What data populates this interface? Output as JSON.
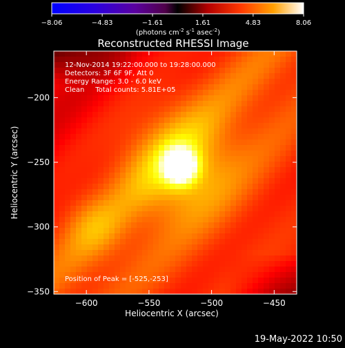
{
  "colorbar": {
    "ticks": [
      "-8.06",
      "-4.83",
      "-1.61",
      "1.61",
      "4.83",
      "8.06"
    ],
    "range": [
      -8.06,
      8.06
    ],
    "units_text": "(photons cm",
    "units_sup1": "-2",
    "units_mid": " s",
    "units_sup2": "-1",
    "units_end": " asec",
    "units_sup3": "-2",
    "units_close": ")"
  },
  "plot": {
    "title": "Reconstructed RHESSI Image",
    "info_lines": [
      "12-Nov-2014 19:22:00.000 to 19:28:00.000",
      "Detectors: 3F 6F 9F, Att 0",
      "Energy Range: 3.0 - 6.0 keV",
      "Clean     Total counts: 5.81E+05"
    ],
    "peak_text": "Position of Peak = [-525,-253]",
    "footer_date": "19-May-2022 10:50"
  },
  "chart_data": {
    "type": "heatmap",
    "title": "Reconstructed RHESSI Image",
    "xlabel": "Heliocentric X (arcsec)",
    "ylabel": "Heliocentric Y (arcsec)",
    "xlim": [
      -626,
      -432
    ],
    "ylim": [
      -352,
      -164
    ],
    "xticks": [
      -600,
      -550,
      -500,
      -450
    ],
    "xtick_labels": [
      "−600",
      "−550",
      "−500",
      "−450"
    ],
    "yticks": [
      -200,
      -250,
      -300,
      -350
    ],
    "ytick_labels": [
      "−200",
      "−250",
      "−300",
      "−350"
    ],
    "peak": {
      "x": -525,
      "y": -253
    },
    "colormap": "hot",
    "colorbar_range": [
      -8.06,
      8.06
    ],
    "colorbar_units": "photons cm-2 s-1 asec-2"
  }
}
